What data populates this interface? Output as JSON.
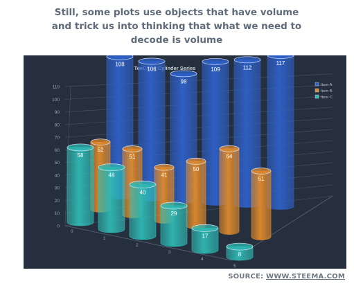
{
  "headline": {
    "line1": "Still, some plots use objects that have volume",
    "line2": "and trick us into thinking that what we need to",
    "line3": "decode is volume"
  },
  "source": {
    "prefix": "SOURCE: ",
    "link": "WWW.STEEMA.COM"
  },
  "colors": {
    "panel_bg": "#262f3d",
    "item_a": "#2e61c9",
    "item_b": "#e08a2c",
    "item_c": "#2fb9b4"
  },
  "chart_data": {
    "type": "bar",
    "style": "3d-cylinder",
    "title": "TeeChart Cylinder Series",
    "categories": [
      "0",
      "1",
      "2",
      "3",
      "4",
      "5"
    ],
    "series": [
      {
        "name": "Item A",
        "values": [
          108,
          106,
          98,
          109,
          112,
          117
        ]
      },
      {
        "name": "Item B",
        "values": [
          52,
          51,
          41,
          50,
          64,
          51
        ]
      },
      {
        "name": "Item C",
        "values": [
          58,
          48,
          40,
          29,
          17,
          8
        ]
      }
    ],
    "y_ticks": [
      "0",
      "10",
      "20",
      "30",
      "40",
      "50",
      "60",
      "70",
      "80",
      "90",
      "100",
      "110"
    ],
    "ylim": [
      0,
      115
    ],
    "grid": true,
    "legend": "top-right",
    "data_labels": true
  }
}
